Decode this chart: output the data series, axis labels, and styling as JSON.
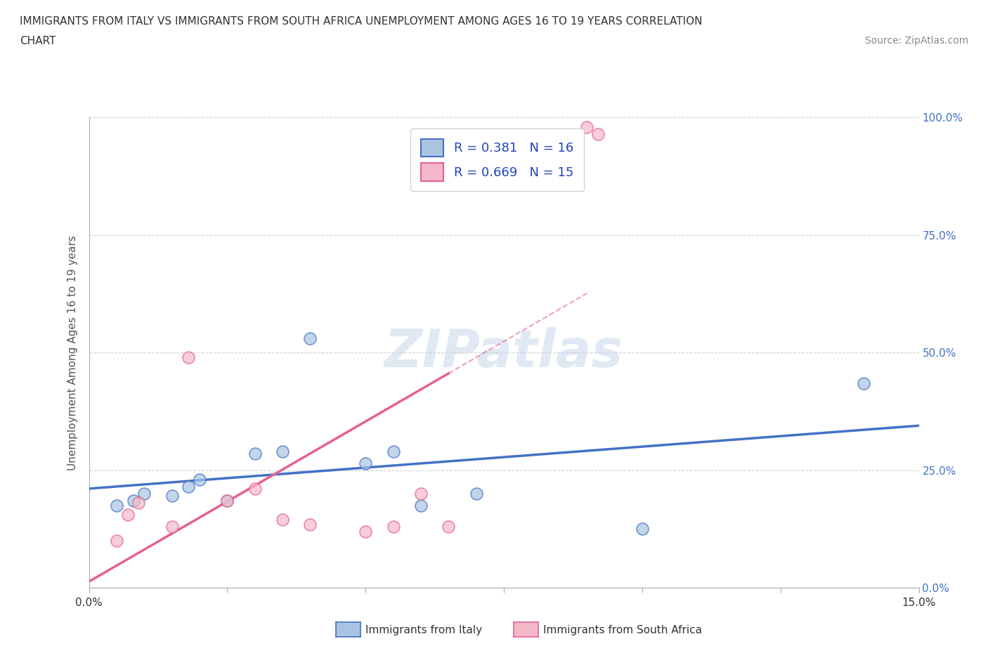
{
  "title_line1": "IMMIGRANTS FROM ITALY VS IMMIGRANTS FROM SOUTH AFRICA UNEMPLOYMENT AMONG AGES 16 TO 19 YEARS CORRELATION",
  "title_line2": "CHART",
  "source_text": "Source: ZipAtlas.com",
  "ylabel": "Unemployment Among Ages 16 to 19 years",
  "xlim": [
    0.0,
    0.15
  ],
  "ylim": [
    0.0,
    1.0
  ],
  "ytick_values": [
    0.0,
    0.25,
    0.5,
    0.75,
    1.0
  ],
  "ytick_labels": [
    "0.0%",
    "25.0%",
    "50.0%",
    "75.0%",
    "100.0%"
  ],
  "italy_x": [
    0.005,
    0.008,
    0.01,
    0.015,
    0.018,
    0.02,
    0.025,
    0.03,
    0.035,
    0.04,
    0.05,
    0.055,
    0.06,
    0.07,
    0.1,
    0.14
  ],
  "italy_y": [
    0.175,
    0.185,
    0.2,
    0.195,
    0.215,
    0.23,
    0.185,
    0.285,
    0.29,
    0.53,
    0.265,
    0.29,
    0.175,
    0.2,
    0.125,
    0.435
  ],
  "south_africa_x": [
    0.005,
    0.007,
    0.009,
    0.015,
    0.018,
    0.025,
    0.03,
    0.035,
    0.04,
    0.05,
    0.055,
    0.06,
    0.065,
    0.09,
    0.092
  ],
  "south_africa_y": [
    0.1,
    0.155,
    0.18,
    0.13,
    0.49,
    0.185,
    0.21,
    0.145,
    0.135,
    0.12,
    0.13,
    0.2,
    0.13,
    0.98,
    0.965
  ],
  "italy_color": "#a8c4e0",
  "south_africa_color": "#f4b8c8",
  "italy_line_color": "#4472c4",
  "south_africa_line_color": "#e86090",
  "italy_R": 0.381,
  "italy_N": 16,
  "south_africa_R": 0.669,
  "south_africa_N": 15,
  "legend_italy_label": "Immigrants from Italy",
  "legend_sa_label": "Immigrants from South Africa",
  "watermark": "ZIPatlas",
  "grid_color": "#d0d0d0",
  "background_color": "#ffffff",
  "title_color": "#333333",
  "axis_label_color": "#555555",
  "right_tick_color": "#4472c4",
  "source_color": "#888888"
}
